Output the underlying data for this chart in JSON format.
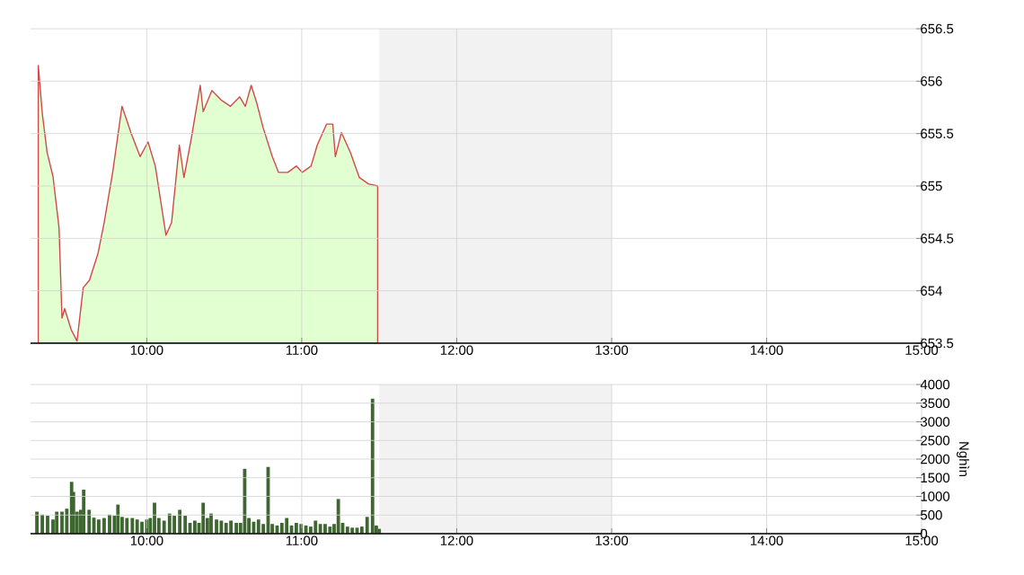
{
  "chart_data": [
    {
      "type": "area",
      "xlim": [
        9.25,
        15
      ],
      "ylim": [
        653.5,
        656.5
      ],
      "xticks": [
        {
          "value": 10,
          "label": "10:00"
        },
        {
          "value": 11,
          "label": "11:00"
        },
        {
          "value": 12,
          "label": "12:00"
        },
        {
          "value": 13,
          "label": "13:00"
        },
        {
          "value": 14,
          "label": "14:00"
        },
        {
          "value": 15,
          "label": "15:00"
        }
      ],
      "yticks": [
        653.5,
        654,
        654.5,
        655,
        655.5,
        656,
        656.5
      ],
      "grid": true,
      "bands": [
        {
          "axis": "x",
          "from": 11.5,
          "to": 13,
          "color": "#f2f2f2"
        }
      ],
      "series": [
        {
          "color": "#e1ffd1",
          "x": [
            9.3,
            9.326,
            9.357,
            9.395,
            9.434,
            9.453,
            9.47,
            9.512,
            9.55,
            9.59,
            9.63,
            9.686,
            9.725,
            9.78,
            9.84,
            9.9,
            9.957,
            10.008,
            10.055,
            10.124,
            10.16,
            10.21,
            10.24,
            10.287,
            10.345,
            10.364,
            10.42,
            10.48,
            10.54,
            10.6,
            10.636,
            10.674,
            10.71,
            10.75,
            10.81,
            10.85,
            10.91,
            10.965,
            11.003,
            11.06,
            11.1,
            11.16,
            11.2,
            11.217,
            11.256,
            11.314,
            11.372,
            11.43,
            11.49
          ],
          "values": [
            656.15,
            655.69,
            655.32,
            655.09,
            654.6,
            653.74,
            653.83,
            653.63,
            653.52,
            654.03,
            654.1,
            654.36,
            654.65,
            655.13,
            655.76,
            655.5,
            655.28,
            655.42,
            655.19,
            654.53,
            654.65,
            655.39,
            655.08,
            655.45,
            655.96,
            655.71,
            655.91,
            655.82,
            655.76,
            655.85,
            655.76,
            655.96,
            655.79,
            655.56,
            655.28,
            655.13,
            655.13,
            655.19,
            655.13,
            655.19,
            655.39,
            655.59,
            655.59,
            655.28,
            655.51,
            655.32,
            655.08,
            655.02,
            655.0
          ]
        }
      ]
    },
    {
      "type": "bar",
      "xlim": [
        9.25,
        15
      ],
      "ylim": [
        0,
        4000
      ],
      "ylabel": "Nghìn",
      "xticks": [
        {
          "value": 10,
          "label": "10:00"
        },
        {
          "value": 11,
          "label": "11:00"
        },
        {
          "value": 12,
          "label": "12:00"
        },
        {
          "value": 13,
          "label": "13:00"
        },
        {
          "value": 14,
          "label": "14:00"
        },
        {
          "value": 15,
          "label": "15:00"
        }
      ],
      "yticks": [
        0,
        500,
        1000,
        1500,
        2000,
        2500,
        3000,
        3500,
        4000
      ],
      "grid": true,
      "bands": [
        {
          "axis": "x",
          "from": 11.5,
          "to": 13,
          "color": "#f2f2f2"
        }
      ],
      "series": [
        {
          "color": "#3d6630",
          "x": [
            9.291,
            9.326,
            9.36,
            9.395,
            9.419,
            9.453,
            9.484,
            9.515,
            9.527,
            9.55,
            9.574,
            9.593,
            9.628,
            9.659,
            9.69,
            9.725,
            9.76,
            9.791,
            9.814,
            9.841,
            9.872,
            9.907,
            9.938,
            9.969,
            10.0,
            10.023,
            10.05,
            10.078,
            10.112,
            10.147,
            10.178,
            10.213,
            10.248,
            10.279,
            10.31,
            10.337,
            10.364,
            10.391,
            10.415,
            10.45,
            10.481,
            10.512,
            10.543,
            10.578,
            10.605,
            10.632,
            10.659,
            10.69,
            10.721,
            10.752,
            10.783,
            10.81,
            10.841,
            10.872,
            10.903,
            10.934,
            10.965,
            10.996,
            11.027,
            11.058,
            11.089,
            11.12,
            11.151,
            11.182,
            11.209,
            11.236,
            11.264,
            11.295,
            11.326,
            11.357,
            11.388,
            11.422,
            11.457,
            11.481,
            11.5
          ],
          "values": [
            590,
            510,
            480,
            380,
            590,
            590,
            670,
            1390,
            1120,
            590,
            640,
            1180,
            640,
            430,
            380,
            420,
            510,
            480,
            780,
            450,
            420,
            420,
            380,
            320,
            380,
            420,
            830,
            420,
            350,
            540,
            480,
            640,
            480,
            290,
            350,
            290,
            830,
            420,
            540,
            380,
            350,
            290,
            350,
            290,
            290,
            1740,
            420,
            320,
            380,
            260,
            1790,
            260,
            220,
            290,
            420,
            220,
            290,
            260,
            220,
            190,
            350,
            260,
            260,
            190,
            260,
            930,
            290,
            190,
            160,
            160,
            190,
            450,
            3620,
            220,
            130
          ]
        }
      ]
    }
  ]
}
